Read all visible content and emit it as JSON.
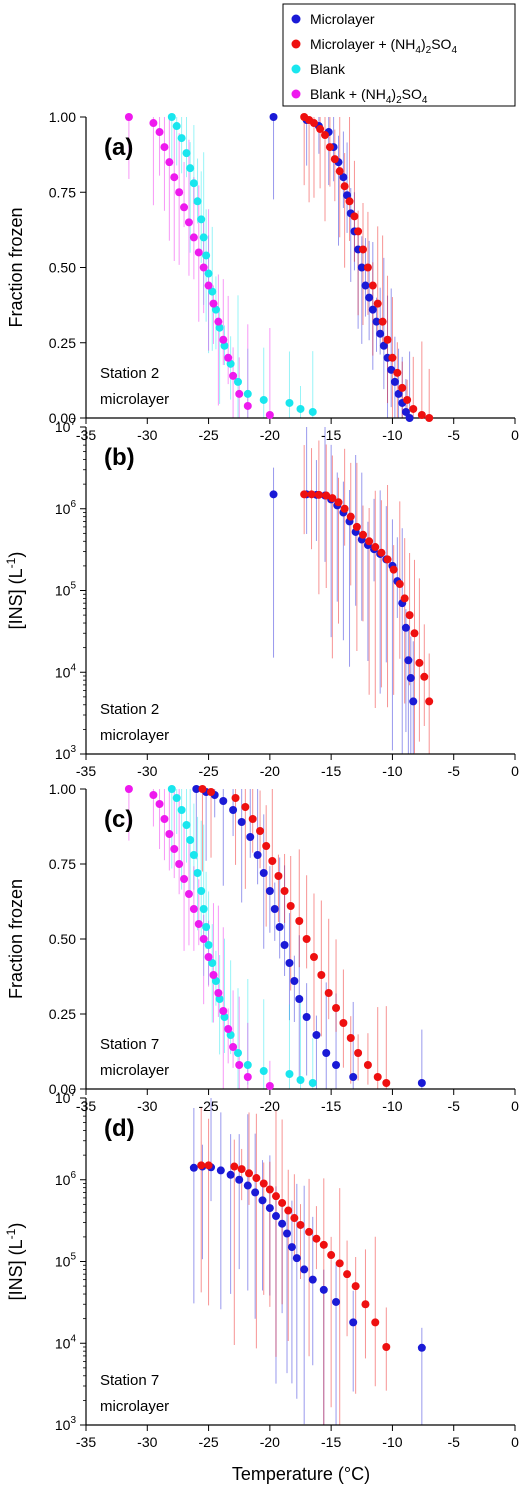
{
  "figure": {
    "xlabel": "Temperature (°C)",
    "legend": [
      {
        "name": "Microlayer",
        "color": "#1a1ad6"
      },
      {
        "name": "Microlayer + (NH4)2SO4",
        "color": "#ee1010"
      },
      {
        "name": "Blank",
        "color": "#19e6ee"
      },
      {
        "name": "Blank + (NH4)2SO4",
        "color": "#ee19ee"
      }
    ]
  },
  "chart_data": [
    {
      "panel": "(a)",
      "type": "scatter",
      "annotation": [
        "Station 2",
        "microlayer"
      ],
      "xlabel": "",
      "ylabel": "Fraction frozen",
      "xlim": [
        -35,
        0
      ],
      "ylim": [
        0,
        1
      ],
      "yscale": "linear",
      "xticks": [
        "-35",
        "-30",
        "-25",
        "-20",
        "-15",
        "-10",
        "-5",
        "0"
      ],
      "yticks": [
        "0.00",
        "0.25",
        "0.50",
        "0.75",
        "1.00"
      ],
      "series": [
        {
          "name": "Microlayer",
          "color": "#1a1ad6",
          "x": [
            -19.7,
            -17.0,
            -16.0,
            -15.2,
            -14.8,
            -14.4,
            -14.0,
            -13.7,
            -13.4,
            -13.1,
            -12.8,
            -12.5,
            -12.2,
            -11.9,
            -11.6,
            -11.3,
            -11.0,
            -10.7,
            -10.4,
            -10.1,
            -9.8,
            -9.5,
            -9.2,
            -8.9,
            -8.6
          ],
          "y": [
            1.0,
            0.99,
            0.97,
            0.95,
            0.9,
            0.85,
            0.8,
            0.74,
            0.68,
            0.62,
            0.56,
            0.5,
            0.44,
            0.4,
            0.36,
            0.32,
            0.28,
            0.24,
            0.2,
            0.16,
            0.12,
            0.08,
            0.05,
            0.02,
            0.0
          ]
        },
        {
          "name": "Microlayer + (NH4)2SO4",
          "color": "#ee1010",
          "x": [
            -17.2,
            -16.8,
            -16.4,
            -15.9,
            -15.5,
            -15.1,
            -14.7,
            -14.3,
            -13.9,
            -13.5,
            -13.1,
            -12.8,
            -12.4,
            -12.0,
            -11.6,
            -11.2,
            -10.8,
            -10.4,
            -10.0,
            -9.6,
            -9.2,
            -8.8,
            -8.3,
            -7.6,
            -7.0
          ],
          "y": [
            1.0,
            0.99,
            0.98,
            0.96,
            0.94,
            0.9,
            0.86,
            0.82,
            0.77,
            0.72,
            0.67,
            0.62,
            0.56,
            0.5,
            0.44,
            0.38,
            0.32,
            0.26,
            0.2,
            0.15,
            0.1,
            0.06,
            0.03,
            0.01,
            0.0
          ]
        },
        {
          "name": "Blank",
          "color": "#19e6ee",
          "x": [
            -28.0,
            -27.6,
            -27.2,
            -26.8,
            -26.5,
            -26.2,
            -25.9,
            -25.6,
            -25.4,
            -25.2,
            -25.0,
            -24.7,
            -24.4,
            -24.1,
            -23.7,
            -23.2,
            -22.6,
            -21.8,
            -20.5,
            -18.4,
            -17.5,
            -16.5
          ],
          "y": [
            1.0,
            0.97,
            0.93,
            0.88,
            0.83,
            0.78,
            0.72,
            0.66,
            0.6,
            0.54,
            0.48,
            0.42,
            0.36,
            0.3,
            0.24,
            0.18,
            0.12,
            0.08,
            0.06,
            0.05,
            0.03,
            0.02
          ]
        },
        {
          "name": "Blank + (NH4)2SO4",
          "color": "#ee19ee",
          "x": [
            -31.5,
            -29.5,
            -29.0,
            -28.6,
            -28.2,
            -27.8,
            -27.4,
            -27.0,
            -26.6,
            -26.2,
            -25.8,
            -25.4,
            -25.0,
            -24.6,
            -24.2,
            -23.8,
            -23.4,
            -23.0,
            -22.5,
            -21.8,
            -20.0
          ],
          "y": [
            1.0,
            0.98,
            0.95,
            0.9,
            0.85,
            0.8,
            0.75,
            0.7,
            0.65,
            0.6,
            0.55,
            0.5,
            0.44,
            0.38,
            0.32,
            0.26,
            0.2,
            0.14,
            0.08,
            0.04,
            0.01
          ]
        }
      ]
    },
    {
      "panel": "(b)",
      "type": "scatter",
      "annotation": [
        "Station 2",
        "microlayer"
      ],
      "xlabel": "",
      "ylabel": "[INS] (L-1)",
      "xlim": [
        -35,
        0
      ],
      "ylim": [
        1000,
        10000000
      ],
      "yscale": "log",
      "xticks": [
        "-35",
        "-30",
        "-25",
        "-20",
        "-15",
        "-10",
        "-5",
        "0"
      ],
      "yticks": [
        "10^3",
        "10^4",
        "10^5",
        "10^6",
        "10^7"
      ],
      "series": [
        {
          "name": "Microlayer",
          "color": "#1a1ad6",
          "x": [
            -19.7,
            -17.0,
            -16.2,
            -15.5,
            -15.0,
            -14.5,
            -14.0,
            -13.5,
            -13.0,
            -12.5,
            -12.0,
            -11.5,
            -11.0,
            -10.5,
            -10.0,
            -9.6,
            -9.2,
            -8.9,
            -8.7,
            -8.5,
            -8.3
          ],
          "y": [
            1500000,
            1500000,
            1480000,
            1450000,
            1300000,
            1100000,
            900000,
            700000,
            520000,
            420000,
            360000,
            320000,
            280000,
            240000,
            200000,
            130000,
            70000,
            35000,
            14000,
            8500,
            4400
          ]
        },
        {
          "name": "Microlayer + (NH4)2SO4",
          "color": "#ee1010",
          "x": [
            -17.2,
            -16.6,
            -16.0,
            -15.4,
            -14.9,
            -14.4,
            -13.9,
            -13.4,
            -12.9,
            -12.4,
            -11.9,
            -11.4,
            -10.9,
            -10.4,
            -9.9,
            -9.4,
            -9.0,
            -8.6,
            -8.2,
            -7.8,
            -7.4,
            -7.0
          ],
          "y": [
            1500000,
            1500000,
            1480000,
            1450000,
            1350000,
            1200000,
            1000000,
            800000,
            600000,
            480000,
            400000,
            340000,
            290000,
            240000,
            180000,
            120000,
            80000,
            50000,
            30000,
            13000,
            8800,
            4400
          ]
        }
      ]
    },
    {
      "panel": "(c)",
      "type": "scatter",
      "annotation": [
        "Station 7",
        "microlayer"
      ],
      "xlabel": "",
      "ylabel": "Fraction frozen",
      "xlim": [
        -35,
        0
      ],
      "ylim": [
        0,
        1
      ],
      "yscale": "linear",
      "xticks": [
        "-35",
        "-30",
        "-25",
        "-20",
        "-15",
        "-10",
        "-5",
        "0"
      ],
      "yticks": [
        "0.00",
        "0.25",
        "0.50",
        "0.75",
        "1.00"
      ],
      "series": [
        {
          "name": "Microlayer",
          "color": "#1a1ad6",
          "x": [
            -26.0,
            -25.2,
            -24.5,
            -23.8,
            -23.0,
            -22.3,
            -21.6,
            -21.0,
            -20.5,
            -20.0,
            -19.6,
            -19.2,
            -18.8,
            -18.4,
            -18.0,
            -17.6,
            -17.0,
            -16.2,
            -15.4,
            -14.6,
            -13.2,
            -7.6
          ],
          "y": [
            1.0,
            0.99,
            0.98,
            0.96,
            0.93,
            0.89,
            0.84,
            0.78,
            0.72,
            0.66,
            0.6,
            0.54,
            0.48,
            0.42,
            0.36,
            0.3,
            0.24,
            0.18,
            0.12,
            0.08,
            0.04,
            0.02
          ]
        },
        {
          "name": "Microlayer + (NH4)2SO4",
          "color": "#ee1010",
          "x": [
            -25.5,
            -24.8,
            -22.8,
            -22.0,
            -21.4,
            -20.8,
            -20.3,
            -19.8,
            -19.3,
            -18.8,
            -18.3,
            -17.6,
            -17.0,
            -16.4,
            -15.8,
            -15.2,
            -14.6,
            -14.0,
            -13.4,
            -12.8,
            -12.0,
            -11.2,
            -10.5
          ],
          "y": [
            1.0,
            0.99,
            0.97,
            0.94,
            0.9,
            0.86,
            0.81,
            0.76,
            0.71,
            0.66,
            0.61,
            0.56,
            0.5,
            0.44,
            0.38,
            0.32,
            0.27,
            0.22,
            0.17,
            0.12,
            0.08,
            0.04,
            0.02
          ]
        },
        {
          "name": "Blank",
          "color": "#19e6ee",
          "x": [
            -28.0,
            -27.6,
            -27.2,
            -26.8,
            -26.5,
            -26.2,
            -25.9,
            -25.6,
            -25.4,
            -25.2,
            -25.0,
            -24.7,
            -24.4,
            -24.1,
            -23.7,
            -23.2,
            -22.6,
            -21.8,
            -20.5,
            -18.4,
            -17.5,
            -16.5
          ],
          "y": [
            1.0,
            0.97,
            0.93,
            0.88,
            0.83,
            0.78,
            0.72,
            0.66,
            0.6,
            0.54,
            0.48,
            0.42,
            0.36,
            0.3,
            0.24,
            0.18,
            0.12,
            0.08,
            0.06,
            0.05,
            0.03,
            0.02
          ]
        },
        {
          "name": "Blank + (NH4)2SO4",
          "color": "#ee19ee",
          "x": [
            -31.5,
            -29.5,
            -29.0,
            -28.6,
            -28.2,
            -27.8,
            -27.4,
            -27.0,
            -26.6,
            -26.2,
            -25.8,
            -25.4,
            -25.0,
            -24.6,
            -24.2,
            -23.8,
            -23.4,
            -23.0,
            -22.5,
            -21.8,
            -20.0
          ],
          "y": [
            1.0,
            0.98,
            0.95,
            0.9,
            0.85,
            0.8,
            0.75,
            0.7,
            0.65,
            0.6,
            0.55,
            0.5,
            0.44,
            0.38,
            0.32,
            0.26,
            0.2,
            0.14,
            0.08,
            0.04,
            0.01
          ]
        }
      ]
    },
    {
      "panel": "(d)",
      "type": "scatter",
      "annotation": [
        "Station 7",
        "microlayer"
      ],
      "xlabel": "Temperature (°C)",
      "ylabel": "[INS] (L-1)",
      "xlim": [
        -35,
        0
      ],
      "ylim": [
        1000,
        10000000
      ],
      "yscale": "log",
      "xticks": [
        "-35",
        "-30",
        "-25",
        "-20",
        "-15",
        "-10",
        "-5",
        "0"
      ],
      "yticks": [
        "10^3",
        "10^4",
        "10^5",
        "10^6",
        "10^7"
      ],
      "series": [
        {
          "name": "Microlayer",
          "color": "#1a1ad6",
          "x": [
            -26.2,
            -25.5,
            -24.8,
            -24.0,
            -23.2,
            -22.5,
            -21.8,
            -21.2,
            -20.6,
            -20.0,
            -19.5,
            -19.0,
            -18.6,
            -18.2,
            -17.8,
            -17.2,
            -16.5,
            -15.6,
            -14.6,
            -13.2,
            -7.6
          ],
          "y": [
            1400000,
            1450000,
            1420000,
            1300000,
            1150000,
            1000000,
            850000,
            700000,
            560000,
            450000,
            360000,
            290000,
            220000,
            150000,
            110000,
            80000,
            60000,
            45000,
            32000,
            18000,
            8800
          ]
        },
        {
          "name": "Microlayer + (NH4)2SO4",
          "color": "#ee1010",
          "x": [
            -25.6,
            -25.0,
            -22.9,
            -22.3,
            -21.7,
            -21.1,
            -20.5,
            -20.0,
            -19.5,
            -19.0,
            -18.5,
            -18.0,
            -17.5,
            -16.8,
            -16.2,
            -15.6,
            -15.0,
            -14.3,
            -13.7,
            -13.0,
            -12.2,
            -11.4,
            -10.5
          ],
          "y": [
            1500000,
            1500000,
            1450000,
            1350000,
            1200000,
            1050000,
            900000,
            760000,
            630000,
            520000,
            420000,
            340000,
            280000,
            230000,
            190000,
            160000,
            120000,
            95000,
            70000,
            50000,
            30000,
            18000,
            9000
          ]
        }
      ]
    }
  ]
}
